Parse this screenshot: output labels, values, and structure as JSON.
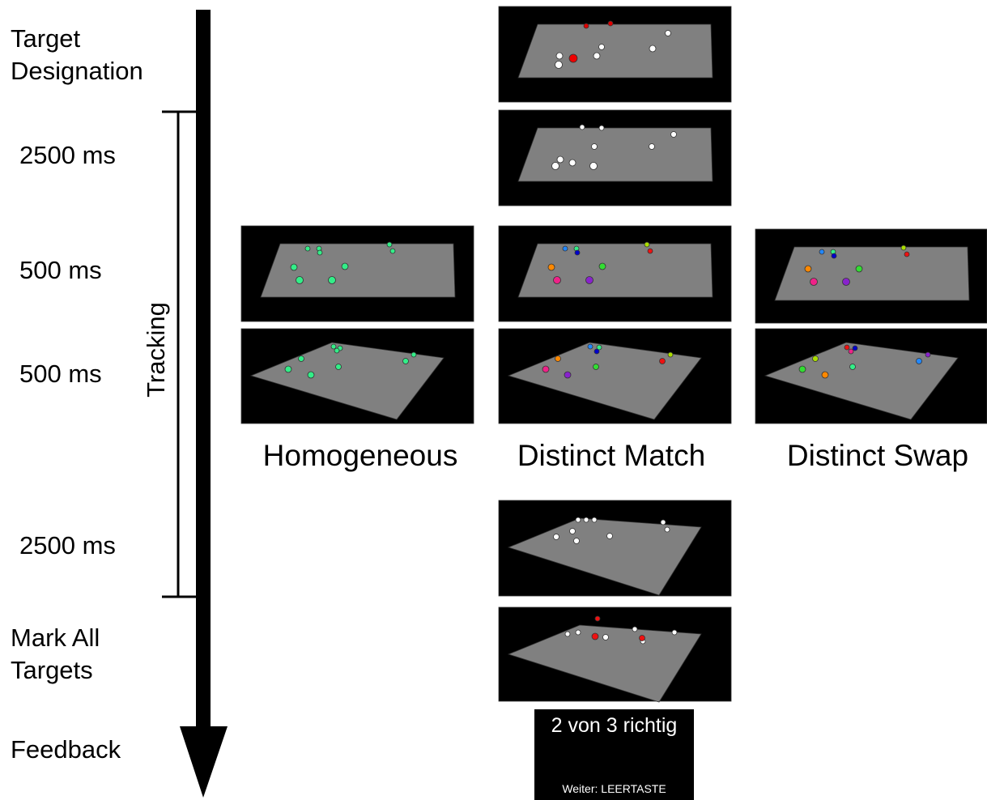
{
  "stages": [
    {
      "label": "Target Designation"
    },
    {
      "label": "2500 ms"
    },
    {
      "label": "500 ms"
    },
    {
      "label": "500 ms"
    },
    {
      "label": "2500 ms"
    },
    {
      "label": "Mark All Targets"
    },
    {
      "label": "Feedback"
    }
  ],
  "phase": "Tracking",
  "conditions": [
    "Homogeneous",
    "Distinct Match",
    "Distinct Swap"
  ],
  "feedback": {
    "result": "2 von 3 richtig",
    "prompt": "Weiter: LEERTASTE"
  }
}
